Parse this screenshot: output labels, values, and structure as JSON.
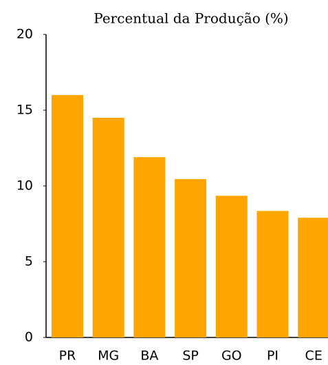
{
  "chart_data": {
    "type": "bar",
    "title": "Percentual da Produção (%)",
    "categories": [
      "PR",
      "MG",
      "BA",
      "SP",
      "GO",
      "PI",
      "CE"
    ],
    "values": [
      16.0,
      14.5,
      11.9,
      10.45,
      9.35,
      8.35,
      7.9
    ],
    "color": "#ffa500",
    "ylim": [
      0,
      20
    ],
    "yticks": [
      0,
      5,
      10,
      15,
      20
    ],
    "grid": false
  }
}
